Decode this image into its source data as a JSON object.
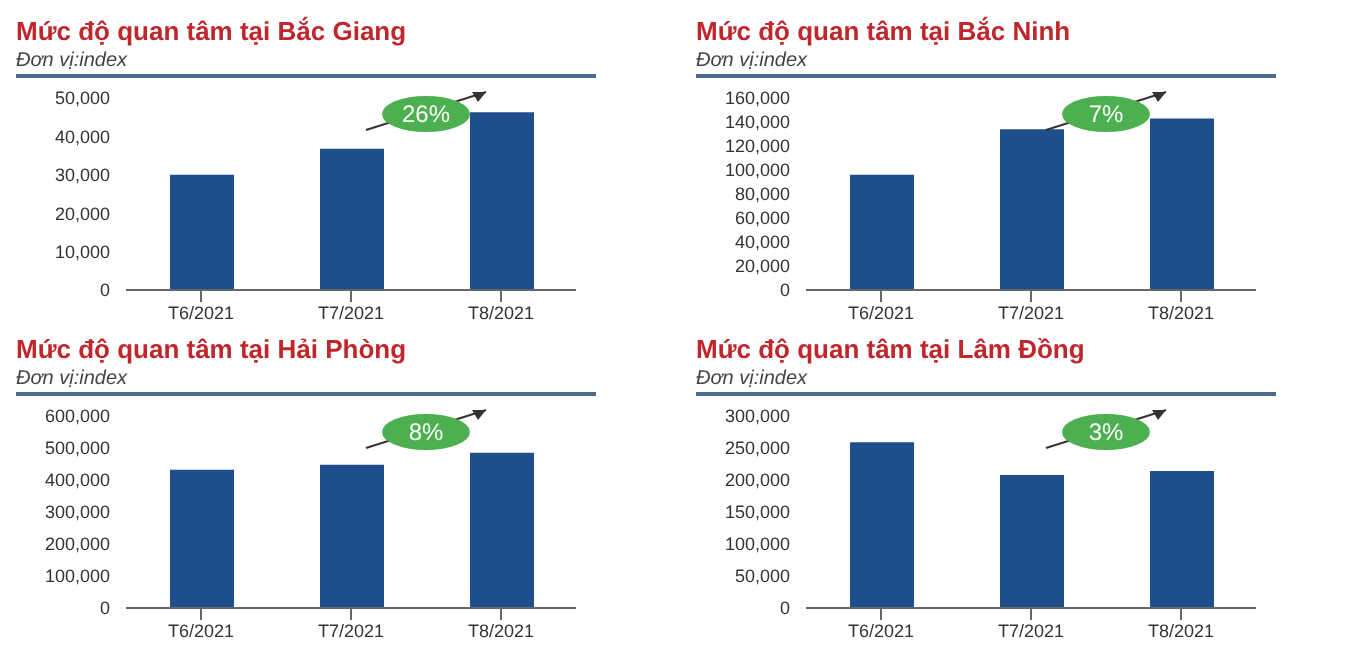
{
  "chart_data": [
    {
      "type": "bar",
      "title": "Mức độ quan tâm tại Bắc Giang",
      "subtitle": "Đơn vị:index",
      "categories": [
        "T6/2021",
        "T7/2021",
        "T8/2021"
      ],
      "values": [
        30000,
        36800,
        46300
      ],
      "color": "#1f4e8c",
      "ylim": [
        0,
        50000
      ],
      "yticks": [
        {
          "value": 0,
          "label": "0"
        },
        {
          "value": 10000,
          "label": "10,000"
        },
        {
          "value": 20000,
          "label": "20,000"
        },
        {
          "value": 30000,
          "label": "30,000"
        },
        {
          "value": 40000,
          "label": "40,000"
        },
        {
          "value": 50000,
          "label": "50,000"
        }
      ],
      "annotations": [
        "26%"
      ]
    },
    {
      "type": "bar",
      "title": "Mức độ quan tâm tại Bắc Ninh",
      "subtitle": "Đơn vị:index",
      "categories": [
        "T6/2021",
        "T7/2021",
        "T8/2021"
      ],
      "values": [
        96000,
        134000,
        143000
      ],
      "color": "#1f4e8c",
      "ylim": [
        0,
        160000
      ],
      "yticks": [
        {
          "value": 0,
          "label": "0"
        },
        {
          "value": 20000,
          "label": "20,000"
        },
        {
          "value": 40000,
          "label": "40,000"
        },
        {
          "value": 60000,
          "label": "60,000"
        },
        {
          "value": 80000,
          "label": "80,000"
        },
        {
          "value": 100000,
          "label": "100,000"
        },
        {
          "value": 120000,
          "label": "120,000"
        },
        {
          "value": 140000,
          "label": "140,000"
        },
        {
          "value": 160000,
          "label": "160,000"
        }
      ],
      "annotations": [
        "7%"
      ]
    },
    {
      "type": "bar",
      "title": "Mức độ quan tâm tại Hải Phòng",
      "subtitle": "Đơn vị:index",
      "categories": [
        "T6/2021",
        "T7/2021",
        "T8/2021"
      ],
      "values": [
        432000,
        448000,
        485000
      ],
      "color": "#1f4e8c",
      "ylim": [
        0,
        600000
      ],
      "yticks": [
        {
          "value": 0,
          "label": "0"
        },
        {
          "value": 100000,
          "label": "100,000"
        },
        {
          "value": 200000,
          "label": "200,000"
        },
        {
          "value": 300000,
          "label": "300,000"
        },
        {
          "value": 400000,
          "label": "400,000"
        },
        {
          "value": 500000,
          "label": "500,000"
        },
        {
          "value": 600000,
          "label": "600,000"
        }
      ],
      "annotations": [
        "8%"
      ]
    },
    {
      "type": "bar",
      "title": "Mức độ quan tâm tại Lâm Đồng",
      "subtitle": "Đơn vị:index",
      "categories": [
        "T6/2021",
        "T7/2021",
        "T8/2021"
      ],
      "values": [
        259000,
        208000,
        214000
      ],
      "color": "#1f4e8c",
      "ylim": [
        0,
        300000
      ],
      "yticks": [
        {
          "value": 0,
          "label": "0"
        },
        {
          "value": 50000,
          "label": "50,000"
        },
        {
          "value": 100000,
          "label": "100,000"
        },
        {
          "value": 150000,
          "label": "150,000"
        },
        {
          "value": 200000,
          "label": "200,000"
        },
        {
          "value": 250000,
          "label": "250,000"
        },
        {
          "value": 300000,
          "label": "300,000"
        }
      ],
      "annotations": [
        "3%"
      ]
    }
  ]
}
